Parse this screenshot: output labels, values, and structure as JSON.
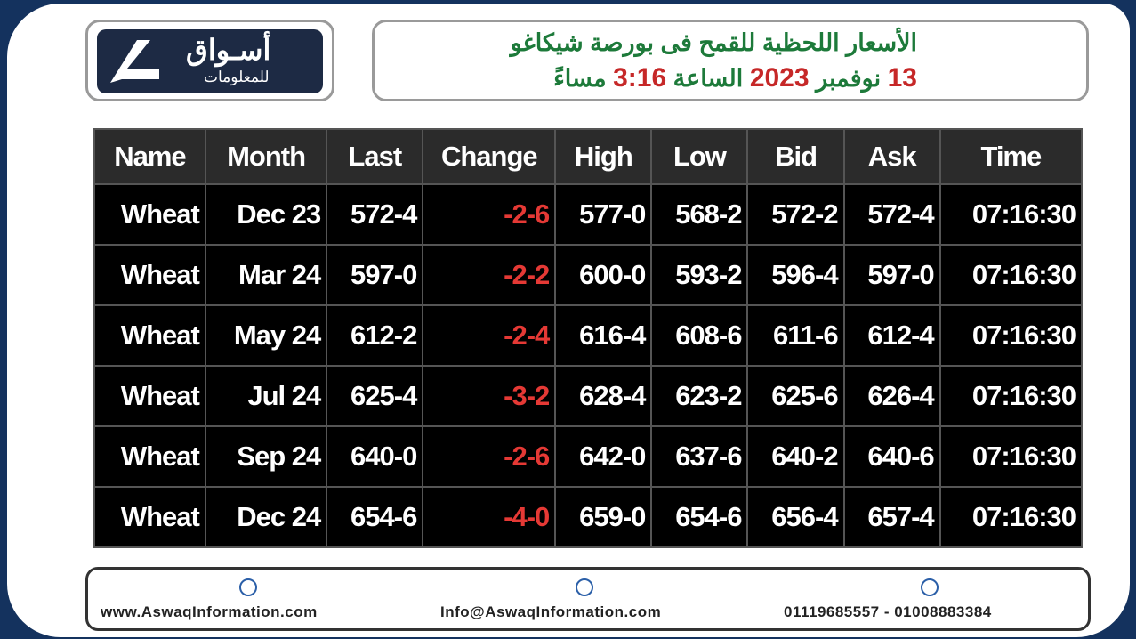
{
  "header": {
    "logo": {
      "name": "أسـواق",
      "subtitle": "للمعلومات"
    },
    "title": "الأسعار اللحظية للقمح فى بورصة شيكاغو",
    "subtitle_parts": [
      "13",
      "نوفمبر",
      "2023",
      "الساعة",
      "3:16",
      "مساءً"
    ]
  },
  "table": {
    "columns": [
      "Name",
      "Month",
      "Last",
      "Change",
      "High",
      "Low",
      "Bid",
      "Ask",
      "Time"
    ],
    "rows": [
      [
        "Wheat",
        "Dec 23",
        "572-4",
        "-2-6",
        "577-0",
        "568-2",
        "572-2",
        "572-4",
        "07:16:30"
      ],
      [
        "Wheat",
        "Mar 24",
        "597-0",
        "-2-2",
        "600-0",
        "593-2",
        "596-4",
        "597-0",
        "07:16:30"
      ],
      [
        "Wheat",
        "May 24",
        "612-2",
        "-2-4",
        "616-4",
        "608-6",
        "611-6",
        "612-4",
        "07:16:30"
      ],
      [
        "Wheat",
        "Jul 24",
        "625-4",
        "-3-2",
        "628-4",
        "623-2",
        "625-6",
        "626-4",
        "07:16:30"
      ],
      [
        "Wheat",
        "Sep 24",
        "640-0",
        "-2-6",
        "642-0",
        "637-6",
        "640-2",
        "640-6",
        "07:16:30"
      ],
      [
        "Wheat",
        "Dec 24",
        "654-6",
        "-4-0",
        "659-0",
        "654-6",
        "656-4",
        "657-4",
        "07:16:30"
      ]
    ]
  },
  "footer": {
    "website": "www.AswaqInformation.com",
    "email": "Info@AswaqInformation.com",
    "phones": "01119685557 - 01008883384"
  }
}
